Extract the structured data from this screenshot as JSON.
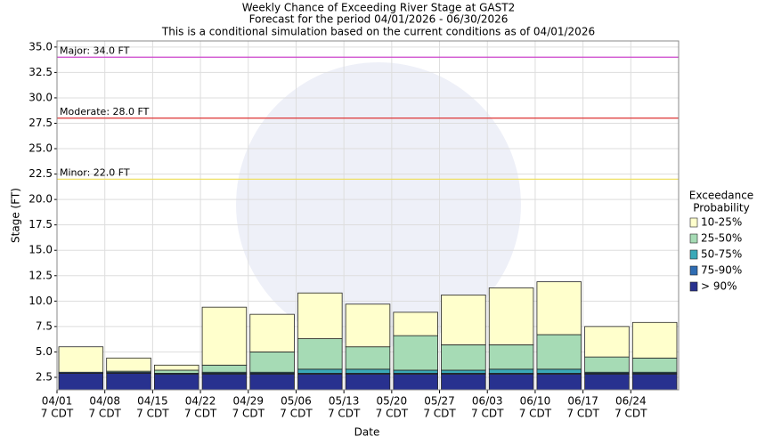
{
  "chart_data": {
    "type": "bar",
    "title": "Weekly Chance of Exceeding River Stage at GAST2",
    "subtitle": [
      "Forecast for the period 04/01/2026 - 06/30/2026",
      "This is a conditional simulation based on the current conditions as of 04/01/2026"
    ],
    "x_label": "Date",
    "y_label": "Stage (FT)",
    "categories": [
      "04/01",
      "04/08",
      "04/15",
      "04/22",
      "04/29",
      "05/06",
      "05/13",
      "05/20",
      "05/27",
      "06/03",
      "06/10",
      "06/17",
      "06/24"
    ],
    "x_sublabels": [
      "7 CDT",
      "7 CDT",
      "7 CDT",
      "7 CDT",
      "7 CDT",
      "7 CDT",
      "7 CDT",
      "7 CDT",
      "7 CDT",
      "7 CDT",
      "7 CDT",
      "7 CDT",
      "7 CDT"
    ],
    "legend_title": [
      "Exceedance",
      "Probability"
    ],
    "series": [
      {
        "name": "> 90%",
        "color": "#28318f",
        "values": [
          2.9,
          2.9,
          2.8,
          2.8,
          2.8,
          2.8,
          2.8,
          2.8,
          2.8,
          2.8,
          2.8,
          2.8,
          2.8
        ]
      },
      {
        "name": "75-90%",
        "color": "#2f6db3",
        "values": [
          0.1,
          0.1,
          0.1,
          0.1,
          0.1,
          0.1,
          0.1,
          0.1,
          0.1,
          0.1,
          0.1,
          0.1,
          0.1
        ]
      },
      {
        "name": "50-75%",
        "color": "#3aa9b8",
        "values": [
          0,
          0,
          0,
          0.1,
          0.1,
          0.4,
          0.4,
          0.3,
          0.3,
          0.4,
          0.4,
          0.1,
          0.1
        ]
      },
      {
        "name": "25-50%",
        "color": "#a6dbb5",
        "values": [
          0,
          0.1,
          0.3,
          0.7,
          2.0,
          3.0,
          2.2,
          3.4,
          2.5,
          2.4,
          3.4,
          1.5,
          1.4
        ]
      },
      {
        "name": "10-25%",
        "color": "#ffffcc",
        "values": [
          2.5,
          1.3,
          0.5,
          5.7,
          3.7,
          4.5,
          4.2,
          2.3,
          4.9,
          5.6,
          5.2,
          3.0,
          3.5
        ]
      }
    ],
    "thresholds": [
      {
        "label": "Major: 34.0 FT",
        "value": 34,
        "color": "#cc44cc"
      },
      {
        "label": "Moderate: 28.0 FT",
        "value": 28,
        "color": "#dd3333"
      },
      {
        "label": "Minor: 22.0 FT",
        "value": 22,
        "color": "#eedd55"
      }
    ],
    "ylim": [
      1.27,
      35.6
    ],
    "yticks": [
      2.5,
      {
        "value": 5,
        "label": "5.0"
      },
      7.5,
      {
        "value": 10,
        "label": "10.0"
      },
      12.5,
      {
        "value": 15,
        "label": "15.0"
      },
      17.5,
      {
        "value": 20,
        "label": "20.0"
      },
      22.5,
      {
        "value": 25,
        "label": "25.0"
      },
      27.5,
      {
        "value": 30,
        "label": "30.0"
      },
      32.5,
      {
        "value": 35,
        "label": "35.0"
      }
    ],
    "grid": true
  }
}
